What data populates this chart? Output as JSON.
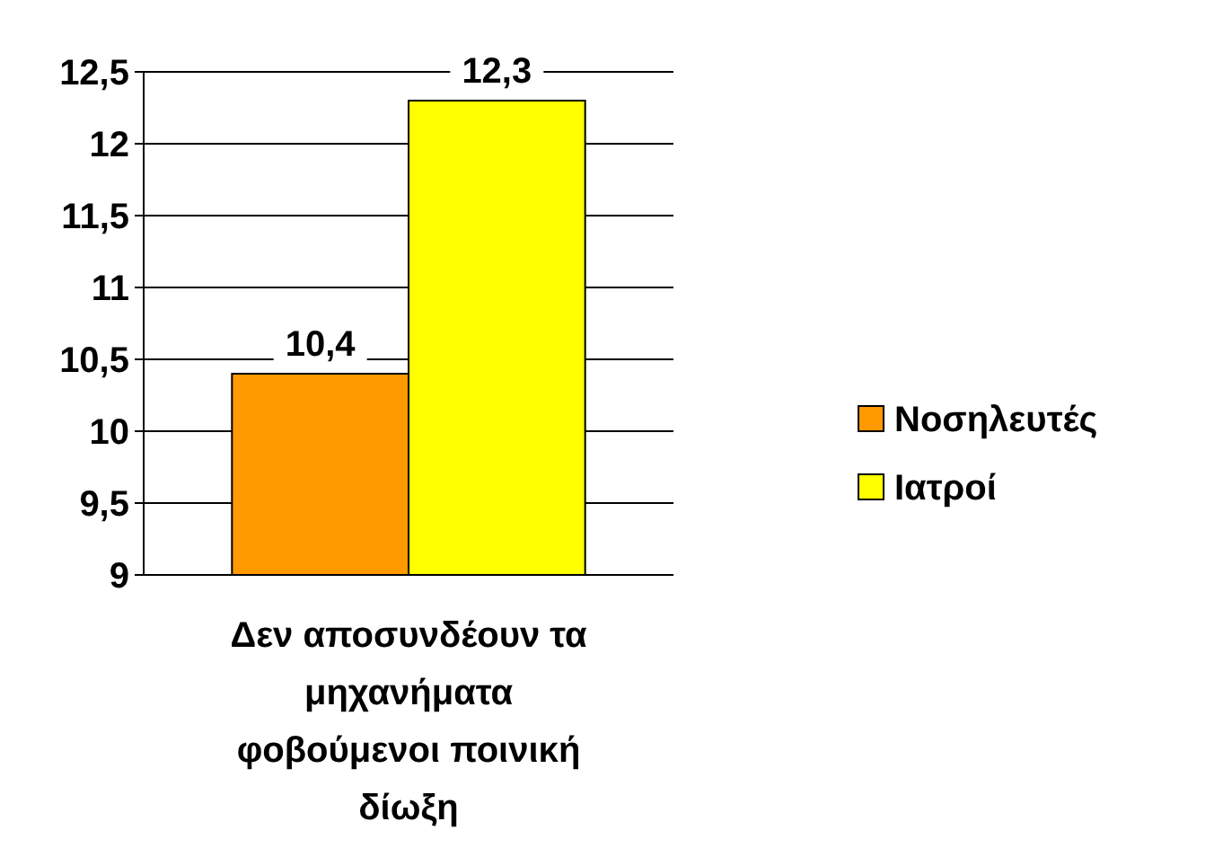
{
  "chart_data": {
    "type": "bar",
    "categories": [
      "Δεν αποσυνδέουν τα μηχανήματα φοβούμενοι ποινική δίωξη"
    ],
    "series": [
      {
        "name": "Νοσηλευτές",
        "color": "#ff9900",
        "values": [
          10.4
        ],
        "value_labels": [
          "10,4"
        ]
      },
      {
        "name": "Ιατροί",
        "color": "#ffff00",
        "values": [
          12.3
        ],
        "value_labels": [
          "12,3"
        ]
      }
    ],
    "ylim": [
      9,
      12.5
    ],
    "yticks": [
      9,
      {
        "value": 9.5,
        "label": "9,5"
      },
      10,
      {
        "value": 10.5,
        "label": "10,5"
      },
      11,
      {
        "value": 11.5,
        "label": "11,5"
      },
      12,
      {
        "value": 12.5,
        "label": "12,5"
      }
    ],
    "grid": "y",
    "legend": "right"
  }
}
